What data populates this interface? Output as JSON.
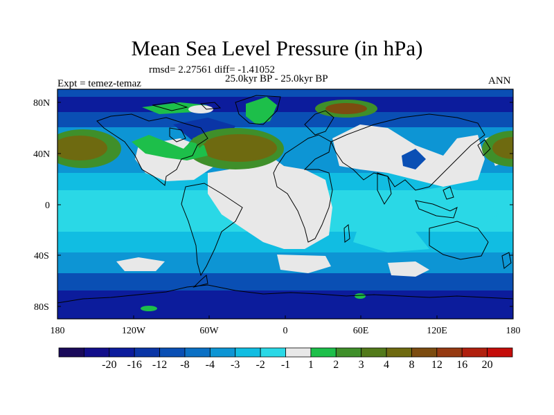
{
  "title": "Mean Sea Level Pressure (in hPa)",
  "stats_text": "rmsd= 2.27561 diff= -1.41052",
  "period_text": "25.0kyr BP - 25.0kyr BP",
  "experiment_text": "Expt = temez-temaz",
  "season_text": "ANN",
  "lat_ticks": [
    "80N",
    "40N",
    "0",
    "40S",
    "80S"
  ],
  "lon_ticks": [
    "180",
    "120W",
    "60W",
    "0",
    "60E",
    "120E",
    "180"
  ],
  "colorbar": {
    "colors": [
      "#1a0a5a",
      "#120e8a",
      "#0c1c9c",
      "#0a35a6",
      "#0a4fb4",
      "#0b70c4",
      "#0d95d4",
      "#11bde2",
      "#2ad8e6",
      "#e8e8e8",
      "#1dbf4a",
      "#3f8f2a",
      "#527a1a",
      "#6e6a10",
      "#7c4c10",
      "#963a12",
      "#b0200e",
      "#c40d0a"
    ],
    "labels": [
      "-20",
      "-16",
      "-12",
      "-8",
      "-4",
      "-3",
      "-2",
      "-1",
      "1",
      "2",
      "3",
      "4",
      "8",
      "12",
      "16",
      "20"
    ]
  }
}
